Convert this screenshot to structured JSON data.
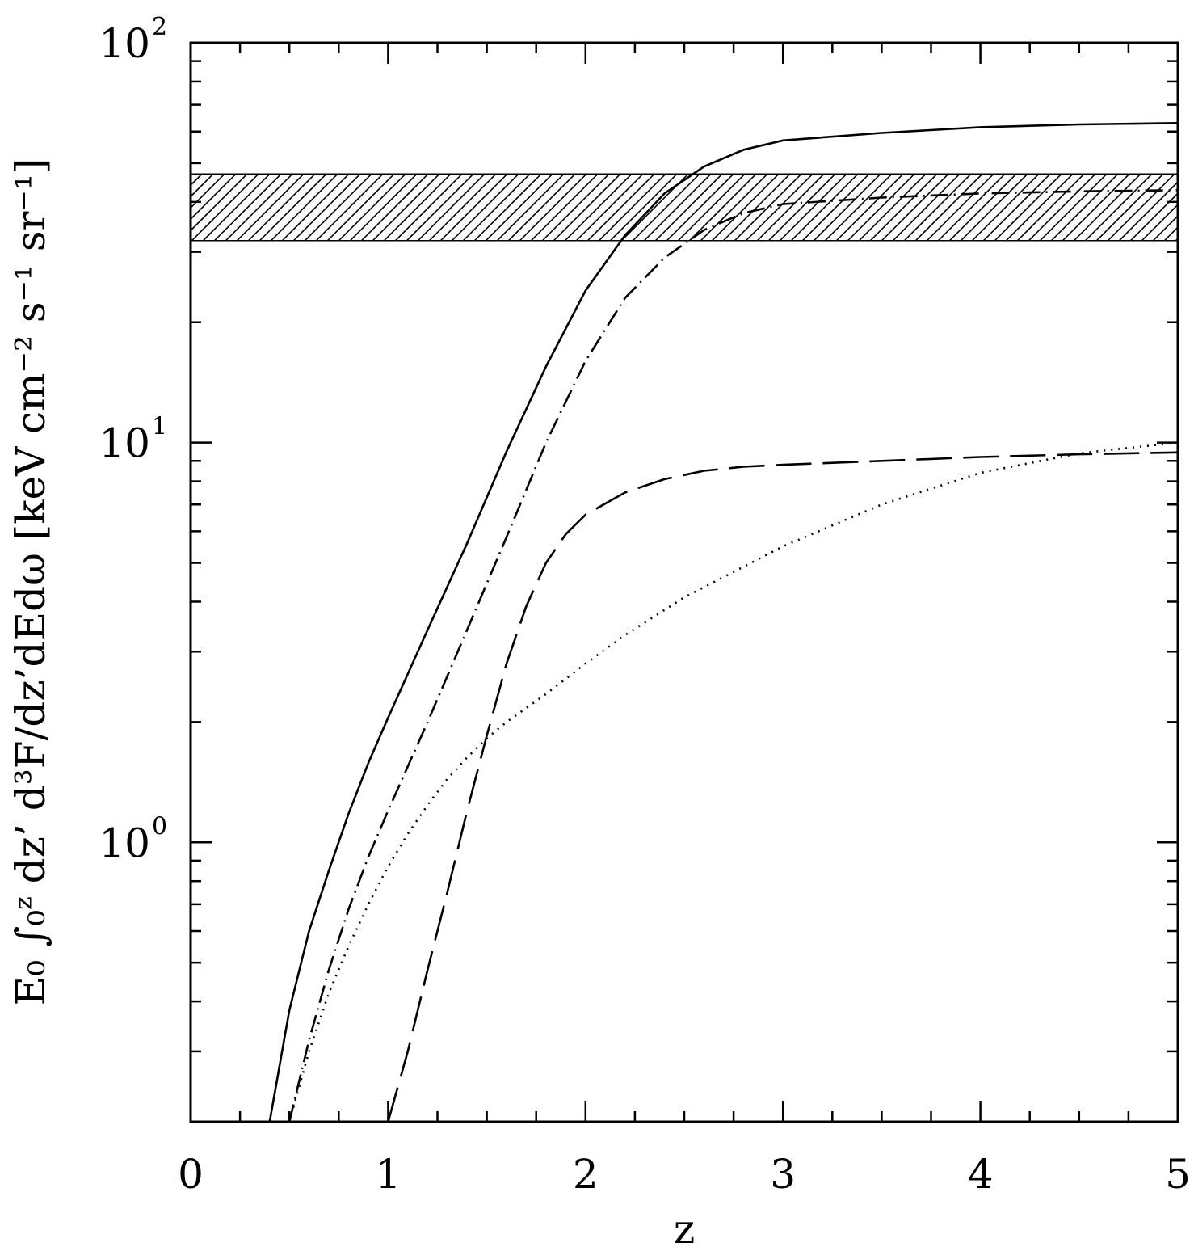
{
  "chart_data": {
    "type": "line",
    "xlabel": "z",
    "ylabel": "E₀ ∫₀ᶻ dz’ d³F/dz’dEdω [keV cm⁻² s⁻¹ sr⁻¹]",
    "xlim": [
      0,
      5
    ],
    "ylim": [
      0.2,
      100
    ],
    "yscale": "log",
    "x_ticks": [
      "0",
      "1",
      "2",
      "3",
      "4",
      "5"
    ],
    "y_ticks": [
      {
        "base": "10",
        "exp": "0",
        "value": 1
      },
      {
        "base": "10",
        "exp": "1",
        "value": 10
      },
      {
        "base": "10",
        "exp": "2",
        "value": 100
      }
    ],
    "grid": false,
    "band": {
      "ymin": 32,
      "ymax": 47,
      "fill": "hatched"
    },
    "series": [
      {
        "style": "solid",
        "x": [
          0.4,
          0.5,
          0.6,
          0.7,
          0.8,
          0.9,
          1.0,
          1.2,
          1.4,
          1.6,
          1.8,
          2.0,
          2.2,
          2.4,
          2.6,
          2.8,
          3.0,
          3.5,
          4.0,
          4.5,
          5.0
        ],
        "y": [
          0.2,
          0.38,
          0.6,
          0.85,
          1.18,
          1.58,
          2.05,
          3.4,
          5.6,
          9.5,
          15.5,
          24,
          33,
          42,
          49,
          54,
          57,
          59.5,
          61.5,
          62.5,
          63
        ]
      },
      {
        "style": "dash-dot",
        "x": [
          0.5,
          0.6,
          0.7,
          0.8,
          0.9,
          1.0,
          1.2,
          1.4,
          1.6,
          1.8,
          2.0,
          2.2,
          2.4,
          2.6,
          2.8,
          3.0,
          3.5,
          4.0,
          4.5,
          5.0
        ],
        "y": [
          0.2,
          0.32,
          0.48,
          0.68,
          0.92,
          1.2,
          2.0,
          3.4,
          5.8,
          10,
          16,
          23,
          29,
          34,
          37.5,
          39.5,
          41,
          42,
          42.5,
          42.8
        ]
      },
      {
        "style": "long-dash",
        "x": [
          1.0,
          1.1,
          1.2,
          1.3,
          1.4,
          1.5,
          1.6,
          1.7,
          1.8,
          1.9,
          2.0,
          2.2,
          2.4,
          2.6,
          2.8,
          3.0,
          3.5,
          4.0,
          4.5,
          5.0
        ],
        "y": [
          0.2,
          0.3,
          0.48,
          0.75,
          1.2,
          1.85,
          2.8,
          3.9,
          5.0,
          5.9,
          6.6,
          7.5,
          8.1,
          8.5,
          8.7,
          8.8,
          9.0,
          9.2,
          9.35,
          9.45
        ]
      },
      {
        "style": "dotted",
        "x": [
          0.5,
          0.6,
          0.7,
          0.8,
          0.9,
          1.0,
          1.1,
          1.2,
          1.3,
          1.4,
          1.5,
          1.6,
          1.8,
          2.0,
          2.2,
          2.5,
          3.0,
          3.5,
          4.0,
          4.5,
          5.0
        ],
        "y": [
          0.2,
          0.3,
          0.42,
          0.55,
          0.7,
          0.87,
          1.05,
          1.24,
          1.44,
          1.63,
          1.82,
          2.0,
          2.35,
          2.8,
          3.3,
          4.1,
          5.5,
          7.0,
          8.4,
          9.4,
          10
        ]
      }
    ]
  }
}
